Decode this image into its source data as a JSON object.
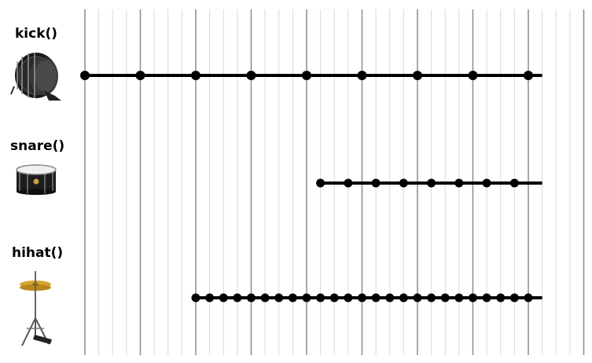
{
  "tracks": [
    {
      "label": "kick()",
      "icon": "bass-drum-icon",
      "beats": [
        0,
        1,
        2,
        3,
        4,
        5,
        6,
        7,
        8
      ],
      "end": 8.25
    },
    {
      "label": "snare()",
      "icon": "snare-drum-icon",
      "beats": [
        4.25,
        4.75,
        5.25,
        5.75,
        6.25,
        6.75,
        7.25,
        7.75
      ],
      "end": 8.25
    },
    {
      "label": "hihat()",
      "icon": "hihat-icon",
      "beats": [
        2,
        2.25,
        2.5,
        2.75,
        3,
        3.25,
        3.5,
        3.75,
        4,
        4.25,
        4.5,
        4.75,
        5,
        5.25,
        5.5,
        5.75,
        6,
        6.25,
        6.5,
        6.75,
        7,
        7.25,
        7.5,
        7.75,
        8
      ],
      "end": 8.25
    }
  ],
  "grid": {
    "subdivisions_per_beat": 4,
    "total_beats": 9,
    "major_color": "#8c8c8c",
    "minor_color": "#d9d9d9"
  },
  "colors": {
    "line": "#000000",
    "dot": "#000000"
  }
}
